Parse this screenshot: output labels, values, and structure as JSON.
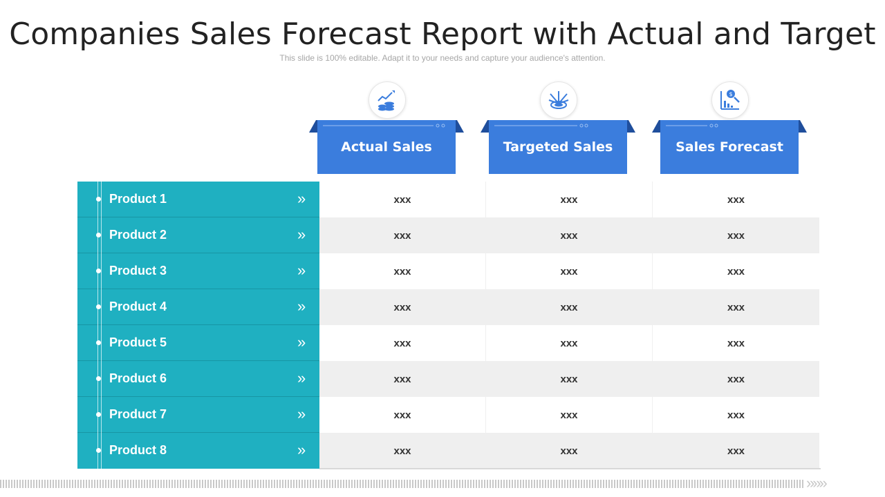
{
  "title": "Companies Sales Forecast Report with Actual and Target",
  "subtitle": "This slide is 100% editable. Adapt it to your needs and capture your audience's attention.",
  "colors": {
    "header_blue": "#3b7ddd",
    "ribbon_dark": "#1f4e9c",
    "row_teal": "#1fb0c1",
    "row_alt_gray": "#efefef"
  },
  "columns": [
    {
      "label": "Actual Sales",
      "icon": "coins-growth-icon"
    },
    {
      "label": "Targeted Sales",
      "icon": "target-icon"
    },
    {
      "label": "Sales Forecast",
      "icon": "forecast-chart-icon"
    }
  ],
  "rows": [
    {
      "label": "Product 1",
      "values": [
        "xxx",
        "xxx",
        "xxx"
      ]
    },
    {
      "label": "Product 2",
      "values": [
        "xxx",
        "xxx",
        "xxx"
      ]
    },
    {
      "label": "Product 3",
      "values": [
        "xxx",
        "xxx",
        "xxx"
      ]
    },
    {
      "label": "Product 4",
      "values": [
        "xxx",
        "xxx",
        "xxx"
      ]
    },
    {
      "label": "Product 5",
      "values": [
        "xxx",
        "xxx",
        "xxx"
      ]
    },
    {
      "label": "Product 6",
      "values": [
        "xxx",
        "xxx",
        "xxx"
      ]
    },
    {
      "label": "Product 7",
      "values": [
        "xxx",
        "xxx",
        "xxx"
      ]
    },
    {
      "label": "Product 8",
      "values": [
        "xxx",
        "xxx",
        "xxx"
      ]
    }
  ],
  "row_arrow": "»",
  "footer_arrows": "»»»"
}
